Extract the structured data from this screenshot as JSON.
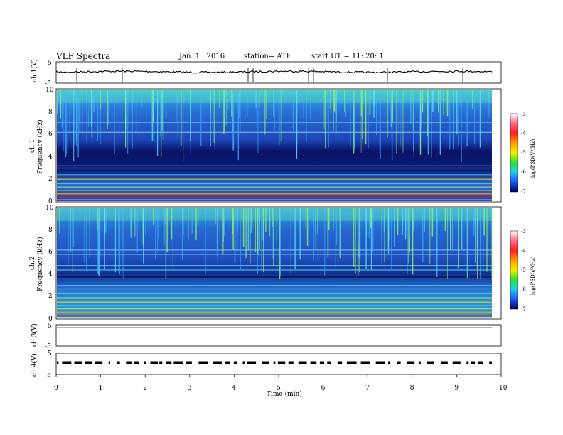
{
  "header": {
    "title": "VLF  Spectra",
    "date": "Jan.  1  , 2016",
    "station": "station= ATH",
    "start": "start  UT  =   11: 20: 1"
  },
  "chart_data": [
    {
      "type": "line",
      "panel": "ch1-waveform",
      "ylabel": "ch.1(V)",
      "ylim": [
        -5,
        5
      ],
      "yticks": [
        "5",
        "-5"
      ],
      "xlim": [
        0,
        10
      ]
    },
    {
      "type": "heatmap",
      "panel": "ch1-spectrogram",
      "ylabel_top": "ch.1",
      "ylabel": "Frequency  (kHz)",
      "ylim": [
        0,
        10
      ],
      "yticks": [
        "10",
        "8",
        "6",
        "4",
        "2",
        "0"
      ],
      "xlim": [
        0,
        10
      ],
      "colorbar": {
        "label": "log(PSD(V²/Hz)",
        "range": [
          -7,
          -3
        ],
        "ticks": [
          "-3",
          "-4",
          "-5",
          "-6",
          "-7"
        ]
      }
    },
    {
      "type": "heatmap",
      "panel": "ch2-spectrogram",
      "ylabel_top": "ch.2",
      "ylabel": "Frequency  (kHz)",
      "ylim": [
        0,
        10
      ],
      "yticks": [
        "10",
        "8",
        "6",
        "4",
        "2",
        "0"
      ],
      "xlim": [
        0,
        10
      ],
      "colorbar": {
        "label": "log(PSD(V²/Hz)",
        "range": [
          -7,
          -3
        ],
        "ticks": [
          "-3",
          "-4",
          "-5",
          "-6",
          "-7"
        ]
      }
    },
    {
      "type": "line",
      "panel": "ch3-waveform",
      "ylabel": "ch.3(V)",
      "ylim": [
        -5,
        5
      ],
      "yticks": [
        "5",
        "-5"
      ],
      "xlim": [
        0,
        10
      ]
    },
    {
      "type": "line",
      "panel": "ch4-waveform",
      "ylabel": "ch.4(V)",
      "ylim": [
        -5,
        5
      ],
      "yticks": [
        "5",
        "-5"
      ],
      "xlim": [
        0,
        10
      ],
      "xlabel": "Time  (min)",
      "xticks": [
        "0",
        "1",
        "2",
        "3",
        "4",
        "5",
        "6",
        "7",
        "8",
        "9",
        "10"
      ]
    }
  ],
  "colors": {
    "spectrogram_low": "#000033",
    "spectrogram_mid": "#1f4fd0",
    "spectrogram_high": "#38d8c8",
    "burst": "#9aff60",
    "line_red": "#d02020"
  }
}
